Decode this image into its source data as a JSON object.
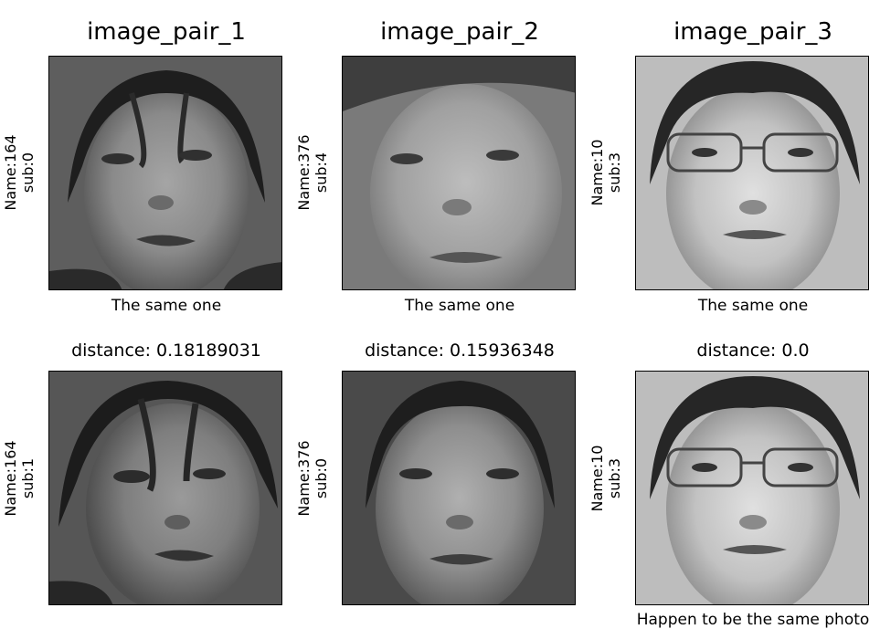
{
  "columns": [
    {
      "title": "image_pair_1",
      "distance": "distance: 0.18189031",
      "top": {
        "name": "Name:164",
        "sub": "sub:0",
        "caption": "The same one"
      },
      "bottom": {
        "name": "Name:164",
        "sub": "sub:1",
        "caption": ""
      },
      "tone": "#6a6a6a"
    },
    {
      "title": "image_pair_2",
      "distance": "distance: 0.15936348",
      "top": {
        "name": "Name:376",
        "sub": "sub:4",
        "caption": "The same one"
      },
      "bottom": {
        "name": "Name:376",
        "sub": "sub:0",
        "caption": ""
      },
      "tone": "#7d7d7d"
    },
    {
      "title": "image_pair_3",
      "distance": "distance: 0.0",
      "top": {
        "name": "Name:10",
        "sub": "sub:3",
        "caption": "The same one"
      },
      "bottom": {
        "name": "Name:10",
        "sub": "sub:3",
        "caption": "Happen to be the same photo"
      },
      "tone": "#9a9a9a"
    }
  ]
}
